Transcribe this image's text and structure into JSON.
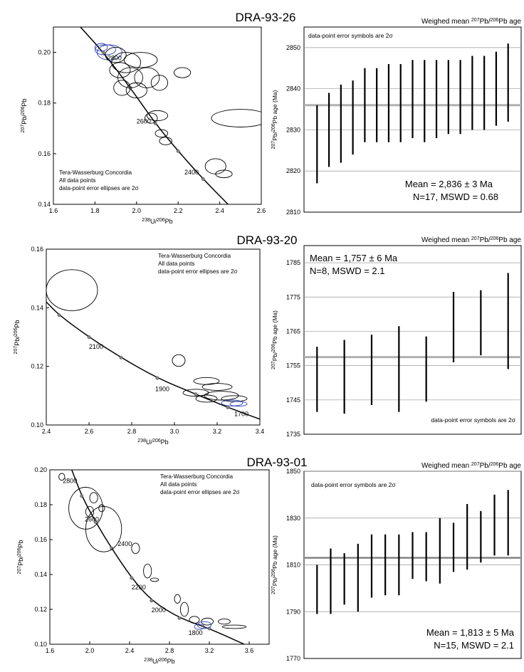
{
  "chart_data": [
    {
      "type": "scatter",
      "sample": "DRA-93-26",
      "panel": "concordia",
      "xlabel": "238U/206Pb",
      "ylabel": "207Pb/206Pb",
      "xlim": [
        1.6,
        2.6
      ],
      "ylim": [
        0.14,
        0.21
      ],
      "xticks": [
        1.6,
        1.8,
        2.0,
        2.2,
        2.4,
        2.6
      ],
      "yticks": [
        0.14,
        0.16,
        0.18,
        0.2
      ],
      "legend": [
        "Tera-Wasserburg Concordia",
        "All data points",
        "data-point error ellipses are 2σ"
      ],
      "concordia_curve": [
        [
          1.73,
          0.21
        ],
        [
          1.84,
          0.2
        ],
        [
          1.97,
          0.186
        ],
        [
          2.09,
          0.172
        ],
        [
          2.2,
          0.161
        ],
        [
          2.32,
          0.15
        ],
        [
          2.44,
          0.14
        ]
      ],
      "age_labels": [
        {
          "age": "2800",
          "x": 1.86,
          "y": 0.198
        },
        {
          "age": "2600",
          "x": 2.0,
          "y": 0.173
        },
        {
          "age": "2400",
          "x": 2.23,
          "y": 0.153
        }
      ],
      "ellipses": [
        {
          "x": 1.85,
          "y": 0.201,
          "rx": 0.05,
          "ry": 0.002,
          "color": "blue"
        },
        {
          "x": 1.83,
          "y": 0.202,
          "rx": 0.03,
          "ry": 0.0015,
          "color": "blue"
        },
        {
          "x": 1.87,
          "y": 0.2,
          "rx": 0.06,
          "ry": 0.003,
          "color": "blue"
        },
        {
          "x": 1.9,
          "y": 0.199,
          "rx": 0.05,
          "ry": 0.003,
          "color": "black"
        },
        {
          "x": 1.95,
          "y": 0.196,
          "rx": 0.07,
          "ry": 0.004,
          "color": "black"
        },
        {
          "x": 2.02,
          "y": 0.197,
          "rx": 0.08,
          "ry": 0.003,
          "color": "black"
        },
        {
          "x": 1.92,
          "y": 0.193,
          "rx": 0.05,
          "ry": 0.003,
          "color": "black"
        },
        {
          "x": 1.97,
          "y": 0.19,
          "rx": 0.06,
          "ry": 0.004,
          "color": "black"
        },
        {
          "x": 2.05,
          "y": 0.19,
          "rx": 0.06,
          "ry": 0.004,
          "color": "black"
        },
        {
          "x": 2.11,
          "y": 0.188,
          "rx": 0.04,
          "ry": 0.003,
          "color": "black"
        },
        {
          "x": 2.0,
          "y": 0.185,
          "rx": 0.05,
          "ry": 0.003,
          "color": "black"
        },
        {
          "x": 1.93,
          "y": 0.186,
          "rx": 0.04,
          "ry": 0.003,
          "color": "black"
        },
        {
          "x": 2.22,
          "y": 0.192,
          "rx": 0.04,
          "ry": 0.002,
          "color": "black"
        },
        {
          "x": 2.1,
          "y": 0.175,
          "rx": 0.05,
          "ry": 0.002,
          "color": "black"
        },
        {
          "x": 2.07,
          "y": 0.174,
          "rx": 0.03,
          "ry": 0.002,
          "color": "black"
        },
        {
          "x": 2.12,
          "y": 0.168,
          "rx": 0.03,
          "ry": 0.0015,
          "color": "black"
        },
        {
          "x": 2.14,
          "y": 0.165,
          "rx": 0.03,
          "ry": 0.0015,
          "color": "black"
        },
        {
          "x": 2.5,
          "y": 0.174,
          "rx": 0.14,
          "ry": 0.0035,
          "color": "black"
        },
        {
          "x": 2.38,
          "y": 0.155,
          "rx": 0.05,
          "ry": 0.003,
          "color": "black"
        },
        {
          "x": 2.42,
          "y": 0.152,
          "rx": 0.04,
          "ry": 0.0015,
          "color": "black"
        }
      ]
    },
    {
      "type": "bar",
      "sample": "DRA-93-26",
      "panel": "weighted_mean",
      "title": "Weighed mean 207Pb/206Pb age",
      "ylabel": "207Pb/206Pb age (Ma)",
      "note": "data-point error symbols are 2σ",
      "ylim": [
        2810,
        2855
      ],
      "yticks": [
        2810,
        2820,
        2830,
        2840,
        2850
      ],
      "mean_line": 2836,
      "mean_text": "Mean = 2,836 ± 3 Ma",
      "stats_text": "N=17, MSWD = 0.68",
      "error_bars": [
        [
          2817,
          2836
        ],
        [
          2821,
          2839
        ],
        [
          2822,
          2841
        ],
        [
          2824,
          2842
        ],
        [
          2827,
          2845
        ],
        [
          2827,
          2845
        ],
        [
          2827,
          2846
        ],
        [
          2827,
          2846
        ],
        [
          2828,
          2847
        ],
        [
          2827,
          2847
        ],
        [
          2828,
          2847
        ],
        [
          2829,
          2847
        ],
        [
          2829,
          2847
        ],
        [
          2830,
          2848
        ],
        [
          2830,
          2848
        ],
        [
          2831,
          2849
        ],
        [
          2832,
          2851
        ]
      ]
    },
    {
      "type": "scatter",
      "sample": "DRA-93-20",
      "panel": "concordia",
      "xlabel": "238U/206Pb",
      "ylabel": "207Pb/206Pb",
      "xlim": [
        2.4,
        3.4
      ],
      "ylim": [
        0.1,
        0.16
      ],
      "xticks": [
        2.4,
        2.6,
        2.8,
        3.0,
        3.2,
        3.4
      ],
      "yticks": [
        0.1,
        0.12,
        0.14,
        0.16
      ],
      "legend": [
        "Tera-Wasserburg Concordia",
        "All data points",
        "data-point error ellipses are 2σ"
      ],
      "concordia_curve": [
        [
          2.4,
          0.142
        ],
        [
          2.46,
          0.1375
        ],
        [
          2.6,
          0.13
        ],
        [
          2.75,
          0.123
        ],
        [
          2.92,
          0.116
        ],
        [
          3.1,
          0.1105
        ],
        [
          3.25,
          0.106
        ],
        [
          3.4,
          0.102
        ]
      ],
      "age_labels": [
        {
          "age": "2100",
          "x": 2.6,
          "y": 0.127
        },
        {
          "age": "1900",
          "x": 2.91,
          "y": 0.1125
        },
        {
          "age": "1700",
          "x": 3.28,
          "y": 0.104
        }
      ],
      "ellipses": [
        {
          "x": 2.52,
          "y": 0.146,
          "rx": 0.12,
          "ry": 0.007,
          "color": "black"
        },
        {
          "x": 3.02,
          "y": 0.122,
          "rx": 0.03,
          "ry": 0.002,
          "color": "black"
        },
        {
          "x": 3.15,
          "y": 0.115,
          "rx": 0.06,
          "ry": 0.0012,
          "color": "black"
        },
        {
          "x": 3.2,
          "y": 0.113,
          "rx": 0.07,
          "ry": 0.0012,
          "color": "black"
        },
        {
          "x": 3.1,
          "y": 0.111,
          "rx": 0.06,
          "ry": 0.0012,
          "color": "black"
        },
        {
          "x": 3.22,
          "y": 0.11,
          "rx": 0.08,
          "ry": 0.0015,
          "color": "black"
        },
        {
          "x": 3.28,
          "y": 0.109,
          "rx": 0.06,
          "ry": 0.001,
          "color": "black"
        },
        {
          "x": 3.15,
          "y": 0.109,
          "rx": 0.05,
          "ry": 0.0012,
          "color": "black"
        },
        {
          "x": 3.27,
          "y": 0.1075,
          "rx": 0.05,
          "ry": 0.001,
          "color": "blue"
        },
        {
          "x": 3.3,
          "y": 0.1072,
          "rx": 0.04,
          "ry": 0.0008,
          "color": "blue"
        }
      ]
    },
    {
      "type": "bar",
      "sample": "DRA-93-20",
      "panel": "weighted_mean",
      "title": "Weighed mean 207Pb/206Pb age",
      "ylabel": "207Pb/206Pb age (Ma)",
      "note": "data-point error symbols are 2σ",
      "ylim": [
        1735,
        1790
      ],
      "yticks": [
        1735,
        1745,
        1755,
        1765,
        1775,
        1785
      ],
      "mean_line": 1757.5,
      "mean_text": "Mean = 1,757 ± 6 Ma",
      "stats_text": "N=8, MSWD = 2.1",
      "error_bars": [
        [
          1741.5,
          1760.5
        ],
        [
          1741,
          1762.5
        ],
        [
          1743.5,
          1764
        ],
        [
          1741.5,
          1766.5
        ],
        [
          1744.5,
          1763.5
        ],
        [
          1756,
          1776.5
        ],
        [
          1758,
          1777
        ],
        [
          1754,
          1782
        ]
      ]
    },
    {
      "type": "scatter",
      "sample": "DRA-93-01",
      "panel": "concordia",
      "xlabel": "238U/206Pb",
      "ylabel": "207Pb/206Pb",
      "xlim": [
        1.6,
        3.8
      ],
      "ylim": [
        0.1,
        0.2
      ],
      "xticks": [
        1.6,
        2.0,
        2.4,
        2.8,
        3.2,
        3.6
      ],
      "yticks": [
        0.1,
        0.12,
        0.14,
        0.16,
        0.18,
        0.2
      ],
      "legend": [
        "Tera-Wasserburg Concordia",
        "All data points",
        "data-point error ellipses are 2σ"
      ],
      "concordia_curve": [
        [
          1.82,
          0.2
        ],
        [
          1.92,
          0.185
        ],
        [
          2.06,
          0.17
        ],
        [
          2.22,
          0.155
        ],
        [
          2.42,
          0.138
        ],
        [
          2.62,
          0.125
        ],
        [
          2.9,
          0.115
        ],
        [
          3.2,
          0.109
        ],
        [
          3.55,
          0.1
        ]
      ],
      "age_labels": [
        {
          "age": "2800",
          "x": 1.73,
          "y": 0.194
        },
        {
          "age": "2600",
          "x": 1.95,
          "y": 0.172
        },
        {
          "age": "2400",
          "x": 2.28,
          "y": 0.158
        },
        {
          "age": "2200",
          "x": 2.42,
          "y": 0.133
        },
        {
          "age": "2000",
          "x": 2.62,
          "y": 0.12
        },
        {
          "age": "1800",
          "x": 2.99,
          "y": 0.107
        }
      ],
      "ellipses": [
        {
          "x": 1.72,
          "y": 0.196,
          "rx": 0.03,
          "ry": 0.002,
          "color": "black"
        },
        {
          "x": 1.96,
          "y": 0.178,
          "rx": 0.17,
          "ry": 0.012,
          "color": "black"
        },
        {
          "x": 2.14,
          "y": 0.166,
          "rx": 0.18,
          "ry": 0.013,
          "color": "black"
        },
        {
          "x": 2.04,
          "y": 0.184,
          "rx": 0.04,
          "ry": 0.003,
          "color": "black"
        },
        {
          "x": 2.0,
          "y": 0.176,
          "rx": 0.04,
          "ry": 0.003,
          "color": "black"
        },
        {
          "x": 2.12,
          "y": 0.178,
          "rx": 0.03,
          "ry": 0.002,
          "color": "black"
        },
        {
          "x": 2.46,
          "y": 0.155,
          "rx": 0.04,
          "ry": 0.003,
          "color": "black"
        },
        {
          "x": 2.58,
          "y": 0.142,
          "rx": 0.04,
          "ry": 0.004,
          "color": "black"
        },
        {
          "x": 2.65,
          "y": 0.137,
          "rx": 0.04,
          "ry": 0.001,
          "color": "black"
        },
        {
          "x": 2.88,
          "y": 0.126,
          "rx": 0.03,
          "ry": 0.0025,
          "color": "black"
        },
        {
          "x": 2.95,
          "y": 0.12,
          "rx": 0.04,
          "ry": 0.004,
          "color": "black"
        },
        {
          "x": 3.05,
          "y": 0.114,
          "rx": 0.05,
          "ry": 0.002,
          "color": "black"
        },
        {
          "x": 3.18,
          "y": 0.113,
          "rx": 0.06,
          "ry": 0.002,
          "color": "black"
        },
        {
          "x": 3.35,
          "y": 0.113,
          "rx": 0.06,
          "ry": 0.0015,
          "color": "black"
        },
        {
          "x": 3.45,
          "y": 0.11,
          "rx": 0.12,
          "ry": 0.001,
          "color": "black"
        },
        {
          "x": 3.15,
          "y": 0.111,
          "rx": 0.07,
          "ry": 0.002,
          "color": "blue"
        },
        {
          "x": 3.1,
          "y": 0.11,
          "rx": 0.05,
          "ry": 0.0015,
          "color": "blue"
        }
      ]
    },
    {
      "type": "bar",
      "sample": "DRA-93-01",
      "panel": "weighted_mean",
      "title": "Weighed mean 207Pb/206Pb age",
      "ylabel": "207Pb/206Pb age (Ma)",
      "note": "data-point error symbols are 2σ",
      "ylim": [
        1770,
        1850
      ],
      "yticks": [
        1770,
        1790,
        1810,
        1830,
        1850
      ],
      "mean_line": 1813,
      "mean_text": "Mean = 1,813 ± 5 Ma",
      "stats_text": "N=15, MSWD = 2.1",
      "error_bars": [
        [
          1789,
          1810
        ],
        [
          1789,
          1817
        ],
        [
          1793,
          1815
        ],
        [
          1790,
          1819
        ],
        [
          1796,
          1823
        ],
        [
          1797,
          1823
        ],
        [
          1797,
          1823
        ],
        [
          1804,
          1824
        ],
        [
          1803,
          1824
        ],
        [
          1802,
          1830
        ],
        [
          1807,
          1828
        ],
        [
          1808,
          1836
        ],
        [
          1811,
          1833
        ],
        [
          1814,
          1840
        ],
        [
          1814,
          1842
        ]
      ]
    }
  ],
  "colors": {
    "blue_ellipse": "#2e3fb5",
    "mean_line": "#b0b0b0",
    "grid": "#999999"
  }
}
